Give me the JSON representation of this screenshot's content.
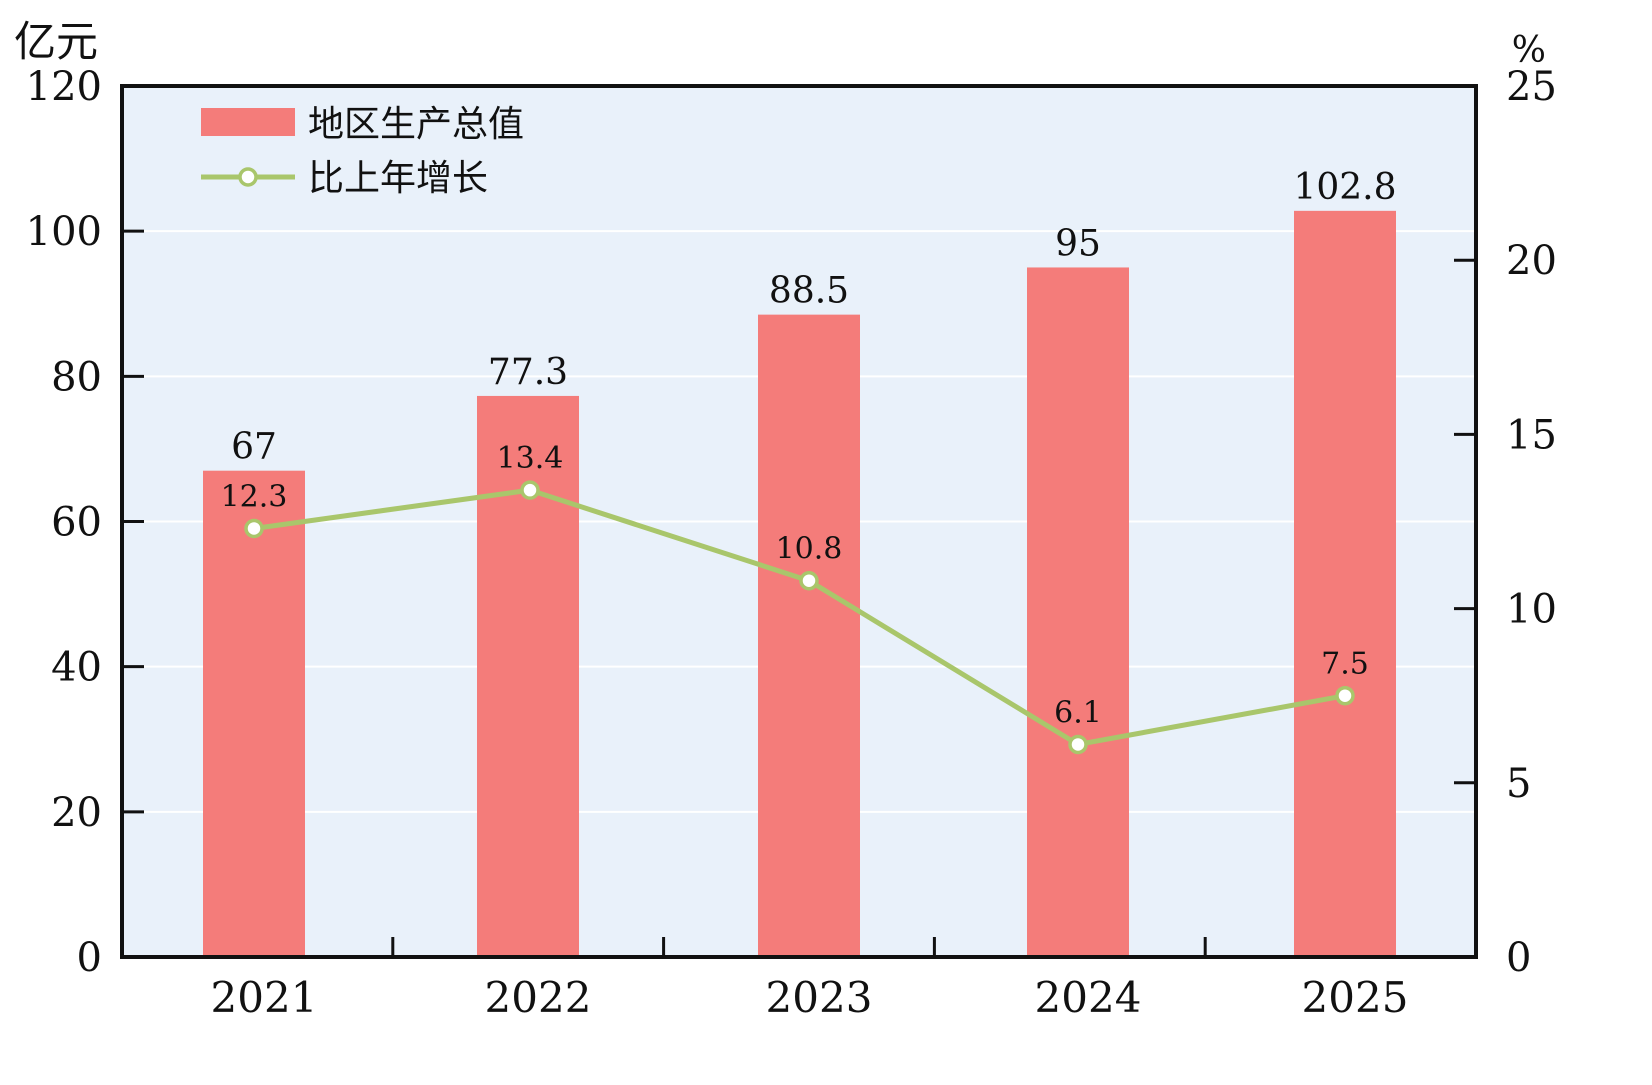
{
  "chart_data": {
    "type": "bar",
    "categories": [
      "2021",
      "2022",
      "2023",
      "2024",
      "2025"
    ],
    "series": [
      {
        "name": "地区生产总值",
        "kind": "bar",
        "axis": "left",
        "values": [
          67,
          77.3,
          88.5,
          95,
          102.8
        ],
        "labels": [
          "67",
          "77.3",
          "88.5",
          "95",
          "102.8"
        ],
        "color": "#f47c7a"
      },
      {
        "name": "比上年增长",
        "kind": "line",
        "axis": "right",
        "values": [
          12.3,
          13.4,
          10.8,
          6.1,
          7.5
        ],
        "labels": [
          "12.3",
          "13.4",
          "10.8",
          "6.1",
          "7.5"
        ],
        "color": "#a9c66b"
      }
    ],
    "y_left": {
      "unit": "亿元",
      "ylim": [
        0,
        120
      ],
      "ticks": [
        "0",
        "20",
        "40",
        "60",
        "80",
        "100",
        "120"
      ]
    },
    "y_right": {
      "unit": "%",
      "ylim": [
        0,
        25
      ],
      "ticks": [
        "0",
        "5",
        "10",
        "15",
        "20",
        "25"
      ]
    },
    "grid": true,
    "legend": "top-left",
    "background_color": "#e9f1fa",
    "grid_color": "#ffffff"
  }
}
